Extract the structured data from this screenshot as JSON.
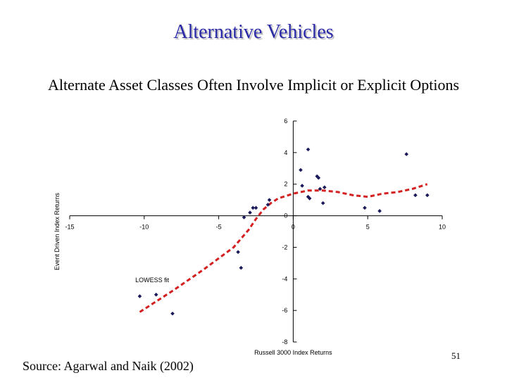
{
  "slide": {
    "title": "Alternative Vehicles",
    "subtitle": "Alternate Asset Classes Often Involve Implicit or Explicit Options",
    "source": "Source: Agarwal and Naik (2002)",
    "page_number": "51"
  },
  "chart_data": {
    "type": "scatter",
    "xlabel": "Russell 3000 Index Returns",
    "ylabel": "Event Driven Index Returns",
    "xlim": [
      -15,
      10
    ],
    "ylim": [
      -8,
      6
    ],
    "x_ticks": [
      -15,
      -10,
      -5,
      0,
      5,
      10
    ],
    "y_ticks": [
      -8,
      -6,
      -4,
      -2,
      0,
      2,
      4,
      6
    ],
    "grid": false,
    "annotation": "LOWESS fit",
    "colors": {
      "points": "#1a1a5a",
      "fit": "#d42020"
    },
    "series": [
      {
        "kind": "points",
        "points": [
          [
            -10.3,
            -5.1
          ],
          [
            -9.2,
            -5.0
          ],
          [
            -8.1,
            -6.2
          ],
          [
            -3.7,
            -2.3
          ],
          [
            -3.5,
            -3.3
          ],
          [
            -3.3,
            -0.1
          ],
          [
            -2.9,
            0.2
          ],
          [
            -2.7,
            0.5
          ],
          [
            -2.5,
            0.5
          ],
          [
            -1.7,
            0.7
          ],
          [
            -1.6,
            1.0
          ],
          [
            0.5,
            2.9
          ],
          [
            0.6,
            1.9
          ],
          [
            1.0,
            1.2
          ],
          [
            1.1,
            1.1
          ],
          [
            1.0,
            4.2
          ],
          [
            1.6,
            2.5
          ],
          [
            1.7,
            2.4
          ],
          [
            1.8,
            1.7
          ],
          [
            2.1,
            1.8
          ],
          [
            2.0,
            0.8
          ],
          [
            4.8,
            0.5
          ],
          [
            5.8,
            0.3
          ],
          [
            7.6,
            3.9
          ],
          [
            8.2,
            1.3
          ],
          [
            9.0,
            1.3
          ]
        ]
      },
      {
        "kind": "fit",
        "points": [
          [
            -10.3,
            -6.1
          ],
          [
            -8.0,
            -4.7
          ],
          [
            -6.0,
            -3.4
          ],
          [
            -4.0,
            -2.0
          ],
          [
            -3.0,
            -0.9
          ],
          [
            -2.5,
            -0.2
          ],
          [
            -2.0,
            0.4
          ],
          [
            -1.5,
            0.8
          ],
          [
            -1.0,
            1.1
          ],
          [
            0.0,
            1.4
          ],
          [
            1.0,
            1.6
          ],
          [
            2.0,
            1.6
          ],
          [
            3.0,
            1.5
          ],
          [
            4.0,
            1.3
          ],
          [
            5.0,
            1.2
          ],
          [
            6.0,
            1.4
          ],
          [
            7.0,
            1.5
          ],
          [
            8.0,
            1.7
          ],
          [
            9.0,
            2.0
          ]
        ]
      }
    ]
  }
}
